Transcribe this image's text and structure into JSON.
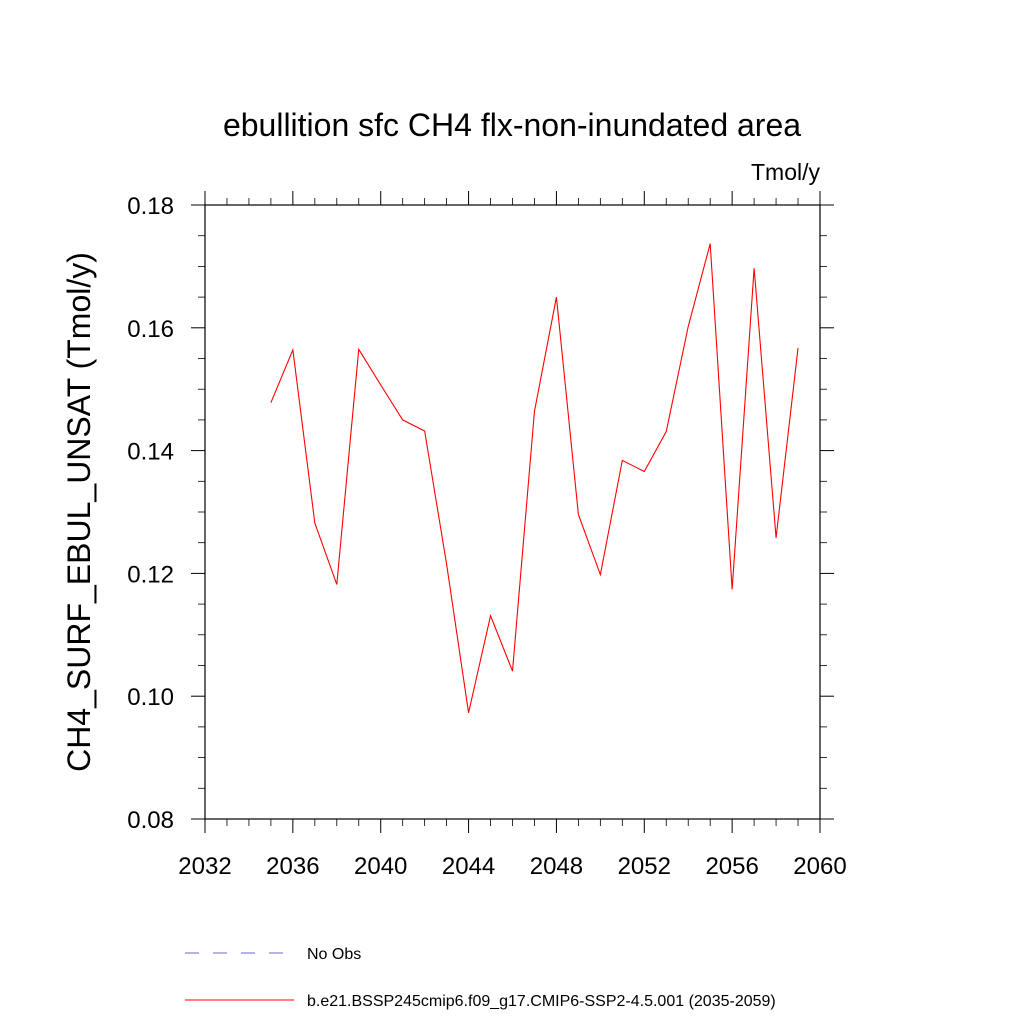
{
  "chart_data": {
    "type": "line",
    "title": "ebullition sfc CH4 flx-non-inundated area",
    "units": "Tmol/y",
    "ylabel": "CH4_SURF_EBUL_UNSAT  (Tmol/y)",
    "xlabel": "",
    "xlim": [
      2032,
      2060
    ],
    "ylim": [
      0.08,
      0.18
    ],
    "x_ticks": [
      2032,
      2036,
      2040,
      2044,
      2048,
      2052,
      2056,
      2060
    ],
    "y_ticks": [
      0.08,
      0.1,
      0.12,
      0.14,
      0.16,
      0.18
    ],
    "x_tick_labels": [
      "2032",
      "2036",
      "2040",
      "2044",
      "2048",
      "2052",
      "2056",
      "2060"
    ],
    "y_tick_labels": [
      "0.08",
      "0.10",
      "0.12",
      "0.14",
      "0.16",
      "0.18"
    ],
    "grid": false,
    "series": [
      {
        "name": "b.e21.BSSP245cmip6.f09_g17.CMIP6-SSP2-4.5.001 (2035-2059)",
        "color": "#ff0000",
        "x": [
          2035,
          2036,
          2037,
          2038,
          2039,
          2040,
          2041,
          2042,
          2043,
          2044,
          2045,
          2046,
          2047,
          2048,
          2049,
          2050,
          2051,
          2052,
          2053,
          2054,
          2055,
          2056,
          2057,
          2058,
          2059
        ],
        "y": [
          0.1478,
          0.1564,
          0.1282,
          0.1182,
          0.1565,
          0.1507,
          0.145,
          0.1432,
          0.1215,
          0.0973,
          0.1131,
          0.1041,
          0.1464,
          0.165,
          0.1296,
          0.1198,
          0.1384,
          0.1366,
          0.1431,
          0.1602,
          0.1737,
          0.1174,
          0.1697,
          0.1258,
          0.1567
        ]
      }
    ],
    "legend": {
      "placement": "bottom",
      "entries": [
        {
          "label": "No Obs",
          "color": "#6a6acd",
          "style": "dashed"
        },
        {
          "label": "b.e21.BSSP245cmip6.f09_g17.CMIP6-SSP2-4.5.001 (2035-2059)",
          "color": "#ff0000",
          "style": "solid"
        }
      ]
    }
  }
}
